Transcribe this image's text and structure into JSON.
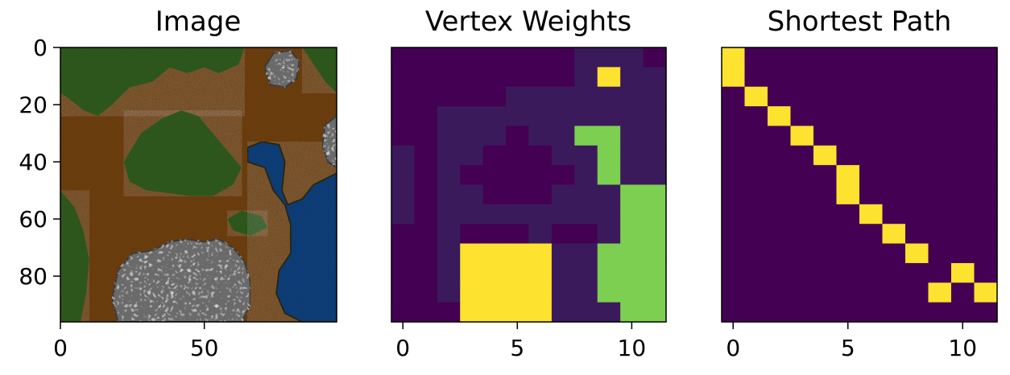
{
  "chart_data": [
    {
      "type": "image",
      "title": "Image",
      "xlim": [
        0,
        96
      ],
      "ylim": [
        0,
        96
      ],
      "xticks": [
        0,
        50
      ],
      "yticks": [
        0,
        20,
        40,
        60,
        80
      ],
      "colors": {
        "forest": "#2f5a1e",
        "dirt": "#6e3f0f",
        "rock": "#6a6a6a",
        "water": "#0e3f7a"
      },
      "regions": {
        "forest": [
          [
            [
              0,
              0
            ],
            [
              64,
              0
            ],
            [
              62,
              6
            ],
            [
              55,
              9
            ],
            [
              50,
              7
            ],
            [
              44,
              9
            ],
            [
              38,
              7
            ],
            [
              32,
              12
            ],
            [
              24,
              14
            ],
            [
              18,
              20
            ],
            [
              13,
              24
            ],
            [
              8,
              22
            ],
            [
              3,
              18
            ],
            [
              0,
              16
            ]
          ],
          [
            [
              22,
              40
            ],
            [
              28,
              30
            ],
            [
              35,
              25
            ],
            [
              42,
              22
            ],
            [
              48,
              24
            ],
            [
              53,
              30
            ],
            [
              58,
              36
            ],
            [
              63,
              42
            ],
            [
              60,
              48
            ],
            [
              53,
              52
            ],
            [
              45,
              52
            ],
            [
              38,
              51
            ],
            [
              30,
              50
            ],
            [
              24,
              47
            ]
          ],
          [
            [
              0,
              50
            ],
            [
              5,
              56
            ],
            [
              8,
              64
            ],
            [
              10,
              74
            ],
            [
              9,
              86
            ],
            [
              7,
              96
            ],
            [
              0,
              96
            ]
          ],
          [
            [
              58,
              60
            ],
            [
              63,
              57
            ],
            [
              70,
              59
            ],
            [
              72,
              63
            ],
            [
              66,
              66
            ],
            [
              60,
              64
            ]
          ],
          [
            [
              84,
              0
            ],
            [
              96,
              0
            ],
            [
              96,
              16
            ],
            [
              92,
              12
            ],
            [
              88,
              6
            ]
          ]
        ],
        "water": [
          [
            [
              65,
              35
            ],
            [
              70,
              33
            ],
            [
              76,
              34
            ],
            [
              78,
              40
            ],
            [
              77,
              50
            ],
            [
              79,
              55
            ],
            [
              84,
              53
            ],
            [
              88,
              48
            ],
            [
              96,
              44
            ],
            [
              96,
              96
            ],
            [
              84,
              96
            ],
            [
              78,
              93
            ],
            [
              75,
              86
            ],
            [
              76,
              78
            ],
            [
              80,
              72
            ],
            [
              80,
              62
            ],
            [
              78,
              55
            ],
            [
              74,
              50
            ],
            [
              71,
              42
            ],
            [
              65,
              40
            ]
          ]
        ],
        "rock": [
          [
            [
              20,
              78
            ],
            [
              25,
              72
            ],
            [
              32,
              71
            ],
            [
              38,
              68
            ],
            [
              44,
              67
            ],
            [
              50,
              68
            ],
            [
              55,
              67
            ],
            [
              60,
              70
            ],
            [
              64,
              75
            ],
            [
              66,
              82
            ],
            [
              66,
              90
            ],
            [
              63,
              96
            ],
            [
              20,
              96
            ],
            [
              18,
              88
            ]
          ],
          [
            [
              71,
              7
            ],
            [
              74,
              2
            ],
            [
              80,
              1
            ],
            [
              83,
              5
            ],
            [
              82,
              11
            ],
            [
              78,
              14
            ],
            [
              73,
              13
            ]
          ],
          [
            [
              92,
              27
            ],
            [
              96,
              24
            ],
            [
              96,
              42
            ],
            [
              93,
              40
            ],
            [
              91,
              34
            ]
          ]
        ]
      }
    },
    {
      "type": "heatmap",
      "title": "Vertex Weights",
      "xticks": [
        0,
        5,
        10
      ],
      "colormap": {
        "1": "#440154",
        "2": "#3b1a5c",
        "3": "#7ccf50",
        "4": "#fde22f"
      },
      "values": [
        [
          1,
          1,
          1,
          1,
          1,
          1,
          1,
          1,
          2,
          2,
          2,
          1
        ],
        [
          1,
          1,
          1,
          1,
          1,
          1,
          1,
          1,
          2,
          4,
          2,
          2
        ],
        [
          1,
          1,
          1,
          1,
          1,
          2,
          2,
          2,
          2,
          2,
          2,
          2
        ],
        [
          1,
          1,
          2,
          2,
          2,
          2,
          2,
          2,
          2,
          2,
          2,
          2
        ],
        [
          1,
          1,
          2,
          2,
          2,
          1,
          2,
          2,
          3,
          3,
          2,
          2
        ],
        [
          2,
          1,
          2,
          2,
          1,
          1,
          1,
          2,
          2,
          3,
          2,
          2
        ],
        [
          2,
          1,
          2,
          1,
          1,
          1,
          1,
          1,
          2,
          3,
          2,
          2
        ],
        [
          2,
          1,
          2,
          2,
          1,
          1,
          1,
          2,
          2,
          2,
          3,
          3
        ],
        [
          2,
          1,
          2,
          2,
          2,
          2,
          2,
          2,
          2,
          2,
          3,
          3
        ],
        [
          1,
          1,
          2,
          1,
          1,
          1,
          2,
          1,
          1,
          2,
          3,
          3
        ],
        [
          1,
          1,
          2,
          4,
          4,
          4,
          4,
          2,
          2,
          3,
          3,
          3
        ],
        [
          1,
          1,
          2,
          4,
          4,
          4,
          4,
          2,
          2,
          3,
          3,
          3
        ],
        [
          1,
          1,
          2,
          4,
          4,
          4,
          4,
          2,
          2,
          3,
          3,
          3
        ],
        [
          1,
          1,
          1,
          4,
          4,
          4,
          4,
          2,
          2,
          2,
          3,
          3
        ]
      ]
    },
    {
      "type": "heatmap",
      "title": "Shortest Path",
      "xticks": [
        0,
        5,
        10
      ],
      "colormap": {
        "0": "#440154",
        "1": "#fde22f"
      },
      "values": [
        [
          1,
          0,
          0,
          0,
          0,
          0,
          0,
          0,
          0,
          0,
          0,
          0
        ],
        [
          1,
          0,
          0,
          0,
          0,
          0,
          0,
          0,
          0,
          0,
          0,
          0
        ],
        [
          0,
          1,
          0,
          0,
          0,
          0,
          0,
          0,
          0,
          0,
          0,
          0
        ],
        [
          0,
          0,
          1,
          0,
          0,
          0,
          0,
          0,
          0,
          0,
          0,
          0
        ],
        [
          0,
          0,
          0,
          1,
          0,
          0,
          0,
          0,
          0,
          0,
          0,
          0
        ],
        [
          0,
          0,
          0,
          0,
          1,
          0,
          0,
          0,
          0,
          0,
          0,
          0
        ],
        [
          0,
          0,
          0,
          0,
          0,
          1,
          0,
          0,
          0,
          0,
          0,
          0
        ],
        [
          0,
          0,
          0,
          0,
          0,
          1,
          0,
          0,
          0,
          0,
          0,
          0
        ],
        [
          0,
          0,
          0,
          0,
          0,
          0,
          1,
          0,
          0,
          0,
          0,
          0
        ],
        [
          0,
          0,
          0,
          0,
          0,
          0,
          0,
          1,
          0,
          0,
          0,
          0
        ],
        [
          0,
          0,
          0,
          0,
          0,
          0,
          0,
          0,
          1,
          0,
          0,
          0
        ],
        [
          0,
          0,
          0,
          0,
          0,
          0,
          0,
          0,
          0,
          0,
          1,
          0
        ],
        [
          0,
          0,
          0,
          0,
          0,
          0,
          0,
          0,
          0,
          1,
          0,
          1
        ],
        [
          0,
          0,
          0,
          0,
          0,
          0,
          0,
          0,
          0,
          0,
          0,
          0
        ]
      ]
    }
  ]
}
